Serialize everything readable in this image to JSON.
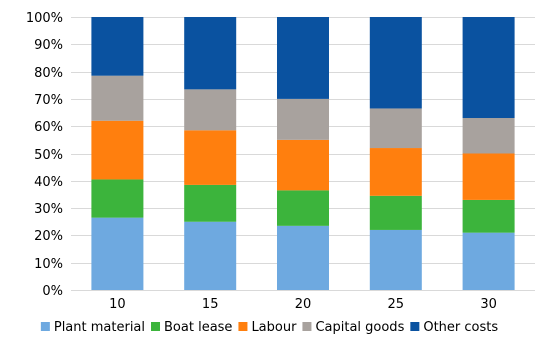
{
  "chart_data": {
    "type": "bar",
    "stacked": true,
    "percent": true,
    "categories": [
      "10",
      "15",
      "20",
      "25",
      "30"
    ],
    "series": [
      {
        "name": "Plant material",
        "color": "#6ea9e0",
        "values": [
          26.5,
          25,
          23.5,
          22,
          21
        ]
      },
      {
        "name": "Boat lease",
        "color": "#3cb43c",
        "values": [
          14,
          13.5,
          13,
          12.5,
          12
        ]
      },
      {
        "name": "Labour",
        "color": "#ff7f0e",
        "values": [
          21.5,
          20,
          18.5,
          17.5,
          17
        ]
      },
      {
        "name": "Capital goods",
        "color": "#a8a29e",
        "values": [
          16.5,
          15,
          15,
          14.5,
          13
        ]
      },
      {
        "name": "Other costs",
        "color": "#0a52a0",
        "values": [
          21.5,
          26.5,
          30,
          33.5,
          37
        ]
      }
    ],
    "yticks": [
      "0%",
      "10%",
      "20%",
      "30%",
      "40%",
      "50%",
      "60%",
      "70%",
      "80%",
      "90%",
      "100%"
    ],
    "ylim": [
      0,
      100
    ],
    "title": "",
    "xlabel": "",
    "ylabel": "",
    "grid": true,
    "legend_position": "bottom"
  }
}
